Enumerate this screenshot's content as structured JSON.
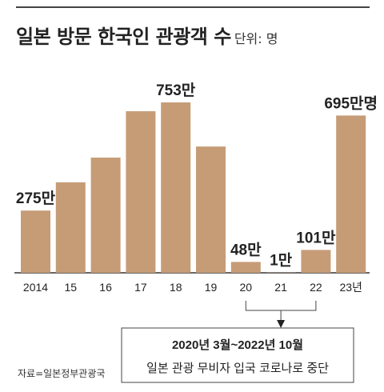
{
  "title": "일본 방문 한국인 관광객 수",
  "unit_label": "단위: 명",
  "source": "자료=일본정부관광국",
  "colors": {
    "bar": "#C69C77",
    "axis": "#333333",
    "text": "#222222"
  },
  "note": {
    "period": "2020년 3월~2022년 10월",
    "description": "일본 관광 무비자 입국 코로나로 중단"
  },
  "chart_data": {
    "type": "bar",
    "categories": [
      "2014",
      "15",
      "16",
      "17",
      "18",
      "19",
      "20",
      "21",
      "22",
      "23년"
    ],
    "values": [
      275,
      400,
      509,
      714,
      753,
      558,
      48,
      1,
      101,
      695
    ],
    "value_unit": "만명",
    "data_labels": [
      {
        "index": 0,
        "text": "275만"
      },
      {
        "index": 4,
        "text": "753만"
      },
      {
        "index": 6,
        "text": "48만"
      },
      {
        "index": 7,
        "text": "1만"
      },
      {
        "index": 8,
        "text": "101만"
      },
      {
        "index": 9,
        "text": "695만명"
      }
    ],
    "ylim": [
      0,
      800
    ],
    "grid": false,
    "legend": "none"
  }
}
